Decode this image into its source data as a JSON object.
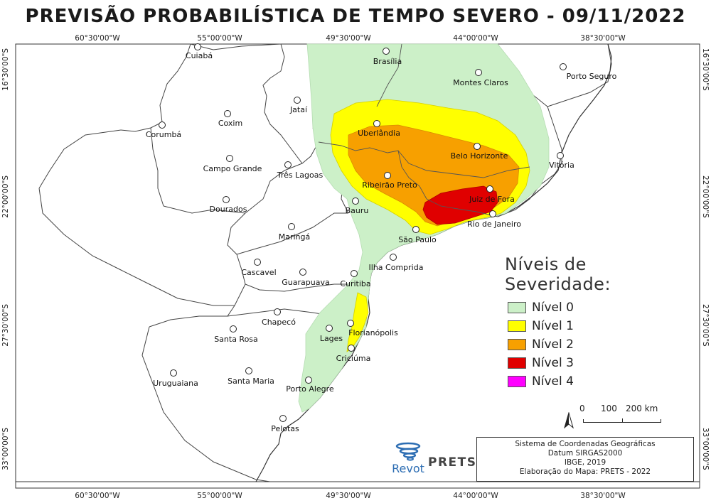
{
  "title": "PREVISÃO PROBABILÍSTICA DE TEMPO SEVERO - 09/11/2022",
  "axes": {
    "top_ticks": [
      "60°30'00\"W",
      "55°00'00\"W",
      "49°30'00\"W",
      "44°00'00\"W",
      "38°30'00\"W"
    ],
    "bottom_ticks": [
      "60°30'00\"W",
      "55°00'00\"W",
      "49°30'00\"W",
      "44°00'00\"W",
      "38°30'00\"W"
    ],
    "left_ticks": [
      "16°30'00\"S",
      "22°00'00\"S",
      "27°30'00\"S",
      "33°00'00\"S"
    ],
    "right_ticks": [
      "16°30'00\"S",
      "22°00'00\"S",
      "27°30'00\"S",
      "33°00'00\"S"
    ]
  },
  "cities": [
    {
      "name": "Cuiabá"
    },
    {
      "name": "Brasília"
    },
    {
      "name": "Montes Claros"
    },
    {
      "name": "Porto Seguro"
    },
    {
      "name": "Jataí"
    },
    {
      "name": "Coxim"
    },
    {
      "name": "Corumbá"
    },
    {
      "name": "Uberlândia"
    },
    {
      "name": "Belo Horizonte"
    },
    {
      "name": "Vitória"
    },
    {
      "name": "Campo Grande"
    },
    {
      "name": "Três Lagoas"
    },
    {
      "name": "Ribeirão Preto"
    },
    {
      "name": "Juiz de Fora"
    },
    {
      "name": "Dourados"
    },
    {
      "name": "Bauru"
    },
    {
      "name": "Rio de Janeiro"
    },
    {
      "name": "Maringá"
    },
    {
      "name": "São Paulo"
    },
    {
      "name": "Ilha Comprida"
    },
    {
      "name": "Cascavel"
    },
    {
      "name": "Guarapuava"
    },
    {
      "name": "Curitiba"
    },
    {
      "name": "Chapecó"
    },
    {
      "name": "Santa Rosa"
    },
    {
      "name": "Florianópolis"
    },
    {
      "name": "Lages"
    },
    {
      "name": "Criciúma"
    },
    {
      "name": "Uruguaiana"
    },
    {
      "name": "Santa Maria"
    },
    {
      "name": "Porto Alegre"
    },
    {
      "name": "Pelotas"
    }
  ],
  "legend": {
    "title": "Níveis de Severidade:",
    "items": [
      {
        "label": "Nível 0",
        "color": "#ccf0c8"
      },
      {
        "label": "Nível 1",
        "color": "#ffff00"
      },
      {
        "label": "Nível 2",
        "color": "#f7a000"
      },
      {
        "label": "Nível 3",
        "color": "#e00000"
      },
      {
        "label": "Nível 4",
        "color": "#ff00ff"
      }
    ]
  },
  "scale": {
    "labels": [
      "0",
      "100",
      "200 km"
    ]
  },
  "info": {
    "lines": [
      "Sistema de Coordenadas Geográficas",
      "Datum SIRGAS2000",
      "IBGE, 2019",
      "Elaboração do Mapa: PRETS - 2022"
    ]
  },
  "logos": {
    "revot": "Revot",
    "prets": "PRETS"
  }
}
